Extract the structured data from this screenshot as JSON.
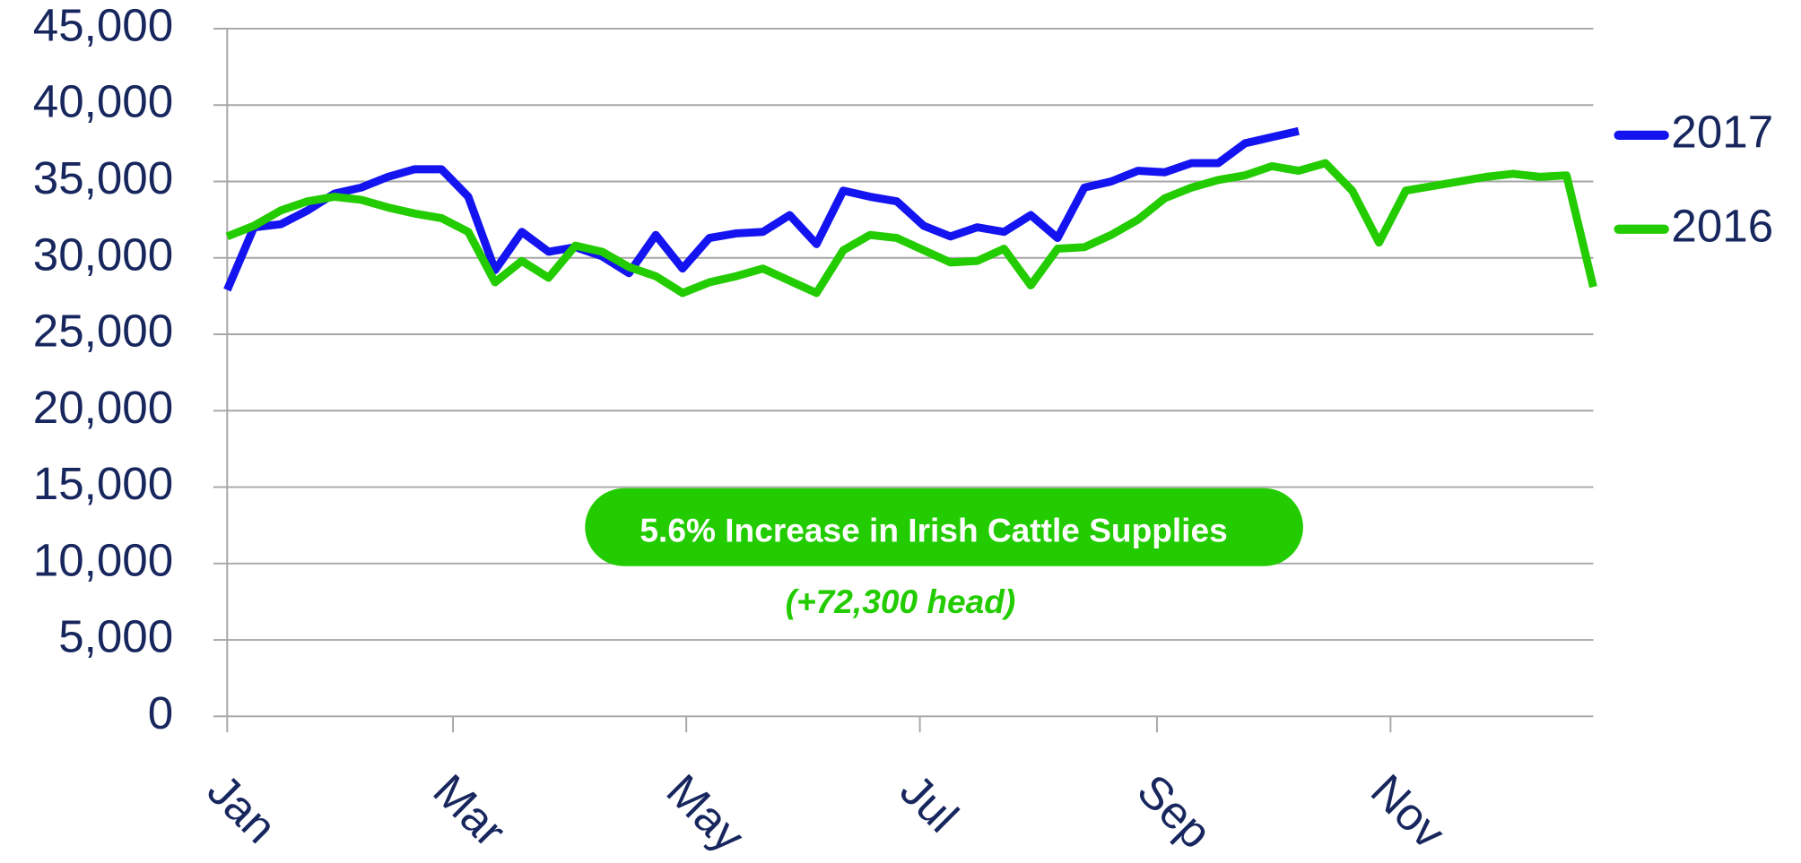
{
  "chart_data": {
    "type": "line",
    "x": [
      0,
      1,
      2,
      3,
      4,
      5,
      6,
      7,
      8,
      9,
      10,
      11,
      12,
      13,
      14,
      15,
      16,
      17,
      18,
      19,
      20,
      21,
      22,
      23,
      24,
      25,
      26,
      27,
      28,
      29,
      30,
      31,
      32,
      33,
      34,
      35,
      36,
      37,
      38,
      39,
      40,
      41,
      42,
      43,
      44,
      45,
      46,
      47,
      48,
      49,
      50,
      51
    ],
    "xlim": [
      0,
      51
    ],
    "xticks": [
      {
        "value": 0,
        "label": "Jan"
      },
      {
        "value": 8.43,
        "label": "Mar"
      },
      {
        "value": 17.14,
        "label": "May"
      },
      {
        "value": 25.86,
        "label": "Jul"
      },
      {
        "value": 34.71,
        "label": "Sep"
      },
      {
        "value": 43.43,
        "label": "Nov"
      }
    ],
    "ylim": [
      0,
      45000
    ],
    "yticks": [
      {
        "value": 0,
        "label": "0"
      },
      {
        "value": 5000,
        "label": "5,000"
      },
      {
        "value": 10000,
        "label": "10,000"
      },
      {
        "value": 15000,
        "label": "15,000"
      },
      {
        "value": 20000,
        "label": "20,000"
      },
      {
        "value": 25000,
        "label": "25,000"
      },
      {
        "value": 30000,
        "label": "30,000"
      },
      {
        "value": 35000,
        "label": "35,000"
      },
      {
        "value": 40000,
        "label": "40,000"
      },
      {
        "value": 45000,
        "label": "45,000"
      }
    ],
    "grid": true,
    "legend": "right",
    "series": [
      {
        "name": "2017",
        "color": "#1414f0",
        "values": [
          27900,
          32000,
          32200,
          33100,
          34200,
          34600,
          35300,
          35800,
          35800,
          34000,
          29200,
          31700,
          30400,
          30700,
          30100,
          29000,
          31500,
          29300,
          31300,
          31600,
          31700,
          32800,
          30900,
          34400,
          34000,
          33700,
          32100,
          31400,
          32000,
          31700,
          32800,
          31300,
          34600,
          35000,
          35700,
          35600,
          36200,
          36200,
          37500,
          37900,
          38300,
          null,
          null,
          null,
          null,
          null,
          null,
          null,
          null,
          null,
          null,
          null
        ]
      },
      {
        "name": "2016",
        "color": "#22cc00",
        "values": [
          31400,
          32100,
          33100,
          33700,
          34000,
          33800,
          33300,
          32900,
          32600,
          31700,
          28400,
          29800,
          28700,
          30800,
          30400,
          29400,
          28800,
          27700,
          28400,
          28800,
          29300,
          28500,
          27700,
          30500,
          31500,
          31300,
          30500,
          29700,
          29800,
          30600,
          28200,
          30600,
          30700,
          31500,
          32500,
          33900,
          34600,
          35100,
          35400,
          36000,
          35700,
          36200,
          34400,
          31000,
          34400,
          34700,
          35000,
          35300,
          35500,
          35300,
          35400,
          28100
        ]
      }
    ],
    "annotations": [
      "5.6% Increase in Irish Cattle Supplies",
      "(+72,300 head)"
    ]
  }
}
